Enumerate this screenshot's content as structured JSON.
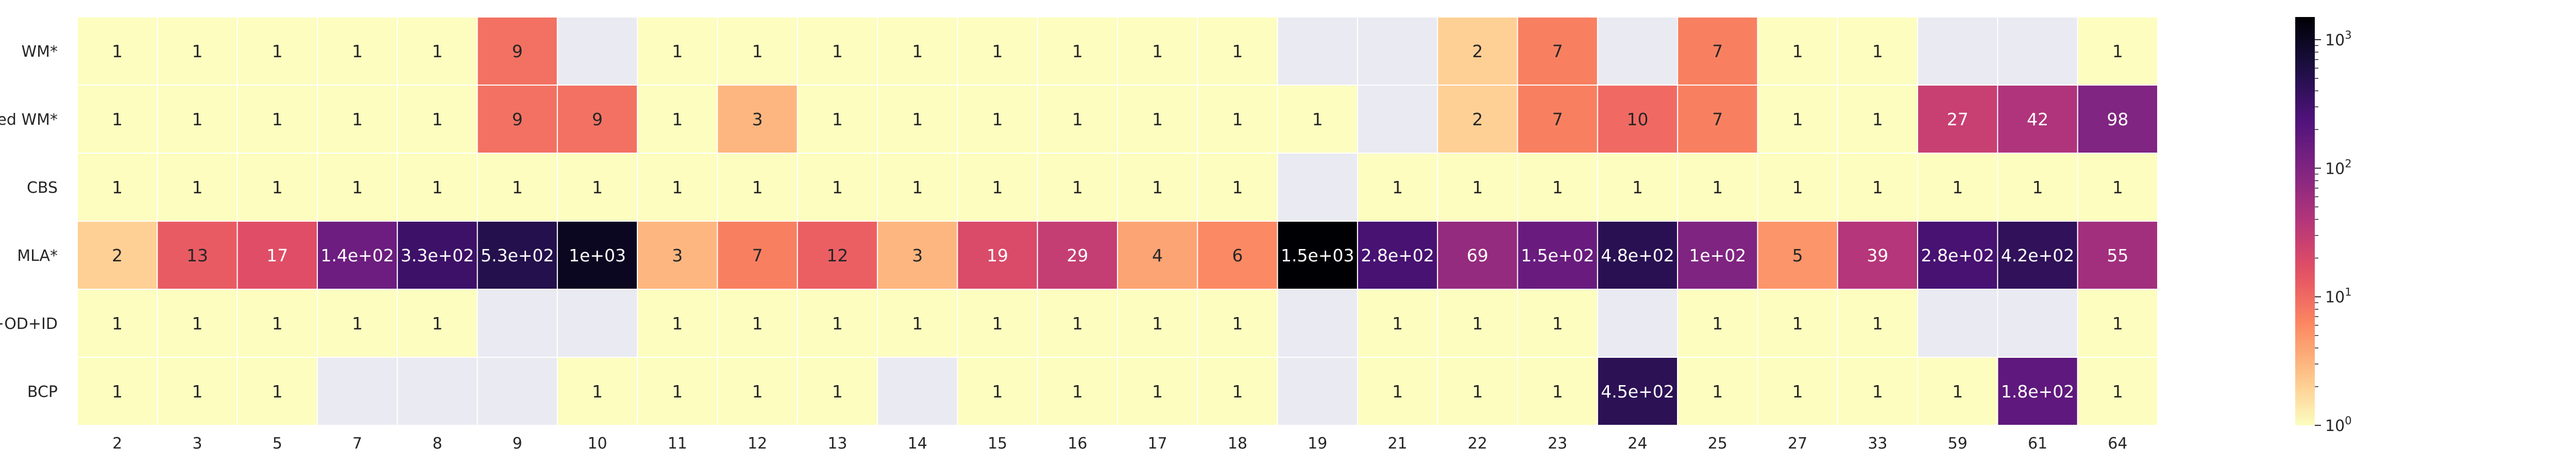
{
  "chart_data": {
    "type": "heatmap",
    "title": "",
    "xlabel": "",
    "ylabel": "",
    "x_categories": [
      "2",
      "3",
      "5",
      "7",
      "8",
      "9",
      "10",
      "11",
      "12",
      "13",
      "14",
      "15",
      "16",
      "17",
      "18",
      "19",
      "21",
      "22",
      "23",
      "24",
      "25",
      "27",
      "33",
      "59",
      "61",
      "64"
    ],
    "y_categories": [
      "WM*",
      "inflated WM*",
      "CBS",
      "MLA*",
      "A*+OD+ID",
      "BCP"
    ],
    "values": [
      [
        1,
        1,
        1,
        1,
        1,
        9,
        null,
        1,
        1,
        1,
        1,
        1,
        1,
        1,
        1,
        null,
        null,
        2,
        7,
        null,
        7,
        1,
        1,
        null,
        null,
        1
      ],
      [
        1,
        1,
        1,
        1,
        1,
        9,
        9,
        1,
        3,
        1,
        1,
        1,
        1,
        1,
        1,
        1,
        null,
        2,
        7,
        10,
        7,
        1,
        1,
        27,
        42,
        98
      ],
      [
        1,
        1,
        1,
        1,
        1,
        1,
        1,
        1,
        1,
        1,
        1,
        1,
        1,
        1,
        1,
        null,
        1,
        1,
        1,
        1,
        1,
        1,
        1,
        1,
        1,
        1
      ],
      [
        2,
        13,
        17,
        140,
        330,
        530,
        1000,
        3,
        7,
        12,
        3,
        19,
        29,
        4,
        6,
        1500,
        280,
        69,
        150,
        480,
        100,
        5,
        39,
        280,
        420,
        55
      ],
      [
        1,
        1,
        1,
        1,
        1,
        null,
        null,
        1,
        1,
        1,
        1,
        1,
        1,
        1,
        1,
        null,
        1,
        1,
        1,
        null,
        1,
        1,
        1,
        null,
        null,
        1
      ],
      [
        1,
        1,
        1,
        null,
        null,
        null,
        1,
        1,
        1,
        1,
        null,
        1,
        1,
        1,
        1,
        null,
        1,
        1,
        1,
        450,
        1,
        1,
        1,
        1,
        180,
        1
      ]
    ],
    "labels": [
      [
        "1",
        "1",
        "1",
        "1",
        "1",
        "9",
        "",
        "1",
        "1",
        "1",
        "1",
        "1",
        "1",
        "1",
        "1",
        "",
        "",
        "2",
        "7",
        "",
        "7",
        "1",
        "1",
        "",
        "",
        "1"
      ],
      [
        "1",
        "1",
        "1",
        "1",
        "1",
        "9",
        "9",
        "1",
        "3",
        "1",
        "1",
        "1",
        "1",
        "1",
        "1",
        "1",
        "",
        "2",
        "7",
        "10",
        "7",
        "1",
        "1",
        "27",
        "42",
        "98"
      ],
      [
        "1",
        "1",
        "1",
        "1",
        "1",
        "1",
        "1",
        "1",
        "1",
        "1",
        "1",
        "1",
        "1",
        "1",
        "1",
        "",
        "1",
        "1",
        "1",
        "1",
        "1",
        "1",
        "1",
        "1",
        "1",
        "1"
      ],
      [
        "2",
        "13",
        "17",
        "1.4e+02",
        "3.3e+02",
        "5.3e+02",
        "1e+03",
        "3",
        "7",
        "12",
        "3",
        "19",
        "29",
        "4",
        "6",
        "1.5e+03",
        "2.8e+02",
        "69",
        "1.5e+02",
        "4.8e+02",
        "1e+02",
        "5",
        "39",
        "2.8e+02",
        "4.2e+02",
        "55"
      ],
      [
        "1",
        "1",
        "1",
        "1",
        "1",
        "",
        "",
        "1",
        "1",
        "1",
        "1",
        "1",
        "1",
        "1",
        "1",
        "",
        "1",
        "1",
        "1",
        "",
        "1",
        "1",
        "1",
        "",
        "",
        "1"
      ],
      [
        "1",
        "1",
        "1",
        "",
        "",
        "",
        "1",
        "1",
        "1",
        "1",
        "",
        "1",
        "1",
        "1",
        "1",
        "",
        "1",
        "1",
        "1",
        "4.5e+02",
        "1",
        "1",
        "1",
        "1",
        "1.8e+02",
        "1"
      ]
    ],
    "colorbar": {
      "scale": "log",
      "range": [
        1,
        1500
      ],
      "colormap": "magma_r",
      "tick_values": [
        1,
        10,
        100,
        1000
      ],
      "tick_bases": [
        "10",
        "10",
        "10",
        "10"
      ],
      "tick_exponents": [
        "0",
        "1",
        "2",
        "3"
      ]
    },
    "missing_color": "#eaeaf2",
    "grid": false,
    "legend": "colorbar-right"
  }
}
